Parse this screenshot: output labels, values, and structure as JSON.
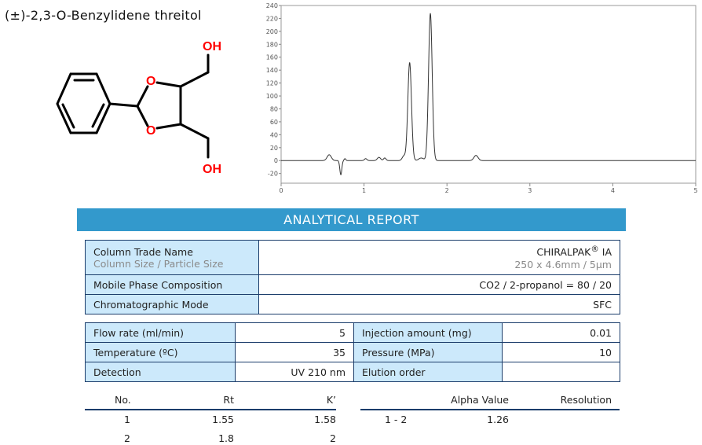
{
  "compound": "(±)-2,3-O-Benzylidene threitol",
  "molecule": {
    "atom_O": "O",
    "atom_OH": "OH",
    "heteroatom_color": "#ff0000"
  },
  "report_title": "ANALYTICAL REPORT",
  "colors": {
    "banner": "#3399cc",
    "label_cell": "#cce9fb",
    "border": "#1b3d6b"
  },
  "column": {
    "label": "Column Trade Name",
    "sublabel": "Column Size / Particle Size",
    "name": "CHIRALPAK",
    "reg": "®",
    "name_suffix": " IA",
    "size": "250 x 4.6mm / 5µm"
  },
  "mobile_phase": {
    "label": "Mobile Phase Composition",
    "value": "CO2 / 2-propanol = 80 / 20"
  },
  "mode": {
    "label": "Chromatographic Mode",
    "value": "SFC"
  },
  "conditions": [
    {
      "l1": "Flow rate (ml/min)",
      "v1": "5",
      "l2": "Injection amount (mg)",
      "v2": "0.01"
    },
    {
      "l1": "Temperature (ºC)",
      "v1": "35",
      "l2": "Pressure (MPa)",
      "v2": "10"
    },
    {
      "l1": "Detection",
      "v1": "UV 210 nm",
      "l2": "Elution order",
      "v2": ""
    }
  ],
  "results": {
    "headers": [
      "No.",
      "Rt",
      "K’"
    ],
    "rows": [
      [
        "1",
        "1.55",
        "1.58"
      ],
      [
        "2",
        "1.8",
        "2"
      ]
    ],
    "alpha_headers": [
      "Alpha Value",
      "Resolution"
    ],
    "alpha_rows": [
      [
        "1 - 2",
        "1.26",
        ""
      ]
    ]
  },
  "chart_data": {
    "type": "line",
    "xlim": [
      0,
      5
    ],
    "ylim": [
      -35,
      240
    ],
    "xticks": [
      "0",
      "1",
      "2",
      "3",
      "4",
      "5"
    ],
    "yticks": [
      "-20",
      "0",
      "20",
      "40",
      "60",
      "80",
      "100",
      "120",
      "140",
      "160",
      "180",
      "200",
      "220",
      "240"
    ],
    "grid": false,
    "peaks": [
      {
        "rt": 0.58,
        "height": 9,
        "width": 0.025
      },
      {
        "rt": 0.72,
        "height": -22,
        "width": 0.012
      },
      {
        "rt": 0.77,
        "height": 3,
        "width": 0.01
      },
      {
        "rt": 1.02,
        "height": 3,
        "width": 0.015
      },
      {
        "rt": 1.18,
        "height": 5,
        "width": 0.02
      },
      {
        "rt": 1.25,
        "height": 4,
        "width": 0.015
      },
      {
        "rt": 1.48,
        "height": 7,
        "width": 0.02
      },
      {
        "rt": 1.55,
        "height": 152,
        "width": 0.022
      },
      {
        "rt": 1.69,
        "height": 4,
        "width": 0.03
      },
      {
        "rt": 1.8,
        "height": 228,
        "width": 0.022
      },
      {
        "rt": 2.35,
        "height": 8,
        "width": 0.025
      }
    ]
  }
}
